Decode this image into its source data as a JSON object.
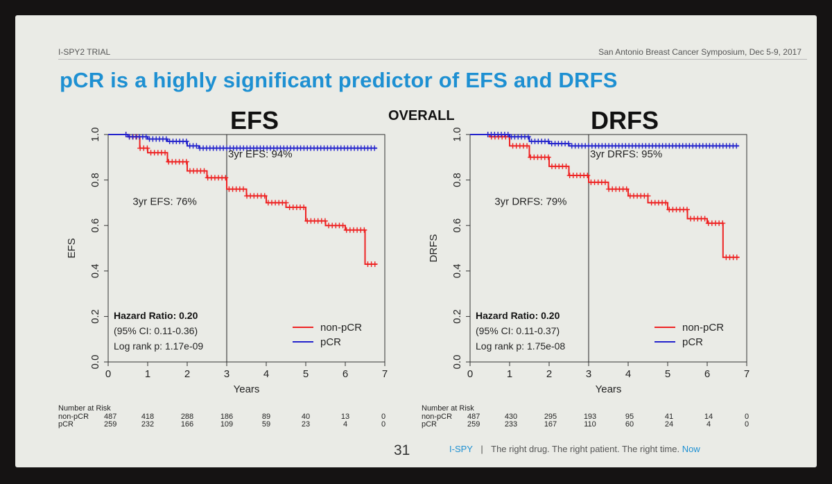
{
  "slide": {
    "header_left": "I-SPY2 TRIAL",
    "header_right": "San Antonio Breast Cancer Symposium, Dec 5-9, 2017",
    "title": "pCR is a highly significant predictor of EFS and DRFS",
    "overall_label": "OVERALL",
    "page_number": "31",
    "footer": {
      "brand": "I-SPY",
      "separator": "|",
      "tagline": "The right drug. The right patient. The right time.",
      "now": "Now"
    }
  },
  "chart_data": [
    {
      "type": "line",
      "title": "EFS",
      "xlabel": "Years",
      "ylabel": "EFS",
      "xlim": [
        0,
        7
      ],
      "ylim": [
        0,
        1
      ],
      "x_ticks": [
        "0",
        "1",
        "2",
        "3",
        "4",
        "5",
        "6",
        "7"
      ],
      "y_ticks": [
        "0.0",
        "0.2",
        "0.4",
        "0.6",
        "0.8",
        "1.0"
      ],
      "reference_x": 3,
      "colors": {
        "non-pCR": "#ee2222",
        "pCR": "#2222cc"
      },
      "series": [
        {
          "name": "non-pCR",
          "points": [
            [
              0,
              1.0
            ],
            [
              0.5,
              0.99
            ],
            [
              0.8,
              0.94
            ],
            [
              1.0,
              0.92
            ],
            [
              1.5,
              0.88
            ],
            [
              2.0,
              0.84
            ],
            [
              2.5,
              0.81
            ],
            [
              3.0,
              0.76
            ],
            [
              3.5,
              0.73
            ],
            [
              4.0,
              0.7
            ],
            [
              4.5,
              0.68
            ],
            [
              5.0,
              0.62
            ],
            [
              5.5,
              0.6
            ],
            [
              6.0,
              0.58
            ],
            [
              6.4,
              0.58
            ],
            [
              6.5,
              0.43
            ],
            [
              6.8,
              0.43
            ]
          ]
        },
        {
          "name": "pCR",
          "points": [
            [
              0,
              1.0
            ],
            [
              0.5,
              0.99
            ],
            [
              1.0,
              0.98
            ],
            [
              1.5,
              0.97
            ],
            [
              2.0,
              0.95
            ],
            [
              2.3,
              0.94
            ],
            [
              3.0,
              0.94
            ],
            [
              4.0,
              0.94
            ],
            [
              5.0,
              0.94
            ],
            [
              6.0,
              0.94
            ],
            [
              6.8,
              0.94
            ]
          ]
        }
      ],
      "annotations": {
        "pcr_label": "3yr EFS: 94%",
        "non_pcr_label": "3yr EFS: 76%"
      },
      "stats": {
        "hazard_ratio": "Hazard Ratio: 0.20",
        "ci": "(95% CI: 0.11-0.36)",
        "p": "Log rank p: 1.17e-09"
      },
      "legend_position": "bottom-right",
      "risk_table": {
        "heading": "Number at Risk",
        "rows": [
          {
            "label": "non-pCR",
            "values": [
              "487",
              "418",
              "288",
              "186",
              "89",
              "40",
              "13",
              "0"
            ]
          },
          {
            "label": "pCR",
            "values": [
              "259",
              "232",
              "166",
              "109",
              "59",
              "23",
              "4",
              "0"
            ]
          }
        ]
      }
    },
    {
      "type": "line",
      "title": "DRFS",
      "xlabel": "Years",
      "ylabel": "DRFS",
      "xlim": [
        0,
        7
      ],
      "ylim": [
        0,
        1
      ],
      "x_ticks": [
        "0",
        "1",
        "2",
        "3",
        "4",
        "5",
        "6",
        "7"
      ],
      "y_ticks": [
        "0.0",
        "0.2",
        "0.4",
        "0.6",
        "0.8",
        "1.0"
      ],
      "reference_x": 3,
      "colors": {
        "non-pCR": "#ee2222",
        "pCR": "#2222cc"
      },
      "series": [
        {
          "name": "non-pCR",
          "points": [
            [
              0,
              1.0
            ],
            [
              0.5,
              0.99
            ],
            [
              1.0,
              0.95
            ],
            [
              1.5,
              0.9
            ],
            [
              2.0,
              0.86
            ],
            [
              2.5,
              0.82
            ],
            [
              3.0,
              0.79
            ],
            [
              3.5,
              0.76
            ],
            [
              4.0,
              0.73
            ],
            [
              4.5,
              0.7
            ],
            [
              5.0,
              0.67
            ],
            [
              5.5,
              0.63
            ],
            [
              6.0,
              0.61
            ],
            [
              6.4,
              0.61
            ],
            [
              6.4,
              0.46
            ],
            [
              6.8,
              0.46
            ]
          ]
        },
        {
          "name": "pCR",
          "points": [
            [
              0,
              1.0
            ],
            [
              0.5,
              1.0
            ],
            [
              1.0,
              0.99
            ],
            [
              1.5,
              0.97
            ],
            [
              2.0,
              0.96
            ],
            [
              2.5,
              0.95
            ],
            [
              3.0,
              0.95
            ],
            [
              4.0,
              0.95
            ],
            [
              5.0,
              0.95
            ],
            [
              6.0,
              0.95
            ],
            [
              6.8,
              0.95
            ]
          ]
        }
      ],
      "annotations": {
        "pcr_label": "3yr DRFS: 95%",
        "non_pcr_label": "3yr DRFS: 79%"
      },
      "stats": {
        "hazard_ratio": "Hazard Ratio: 0.20",
        "ci": "(95% CI: 0.11-0.37)",
        "p": "Log rank p: 1.75e-08"
      },
      "legend_position": "bottom-right",
      "risk_table": {
        "heading": "Number at Risk",
        "rows": [
          {
            "label": "non-pCR",
            "values": [
              "487",
              "430",
              "295",
              "193",
              "95",
              "41",
              "14",
              "0"
            ]
          },
          {
            "label": "pCR",
            "values": [
              "259",
              "233",
              "167",
              "110",
              "60",
              "24",
              "4",
              "0"
            ]
          }
        ]
      }
    }
  ]
}
